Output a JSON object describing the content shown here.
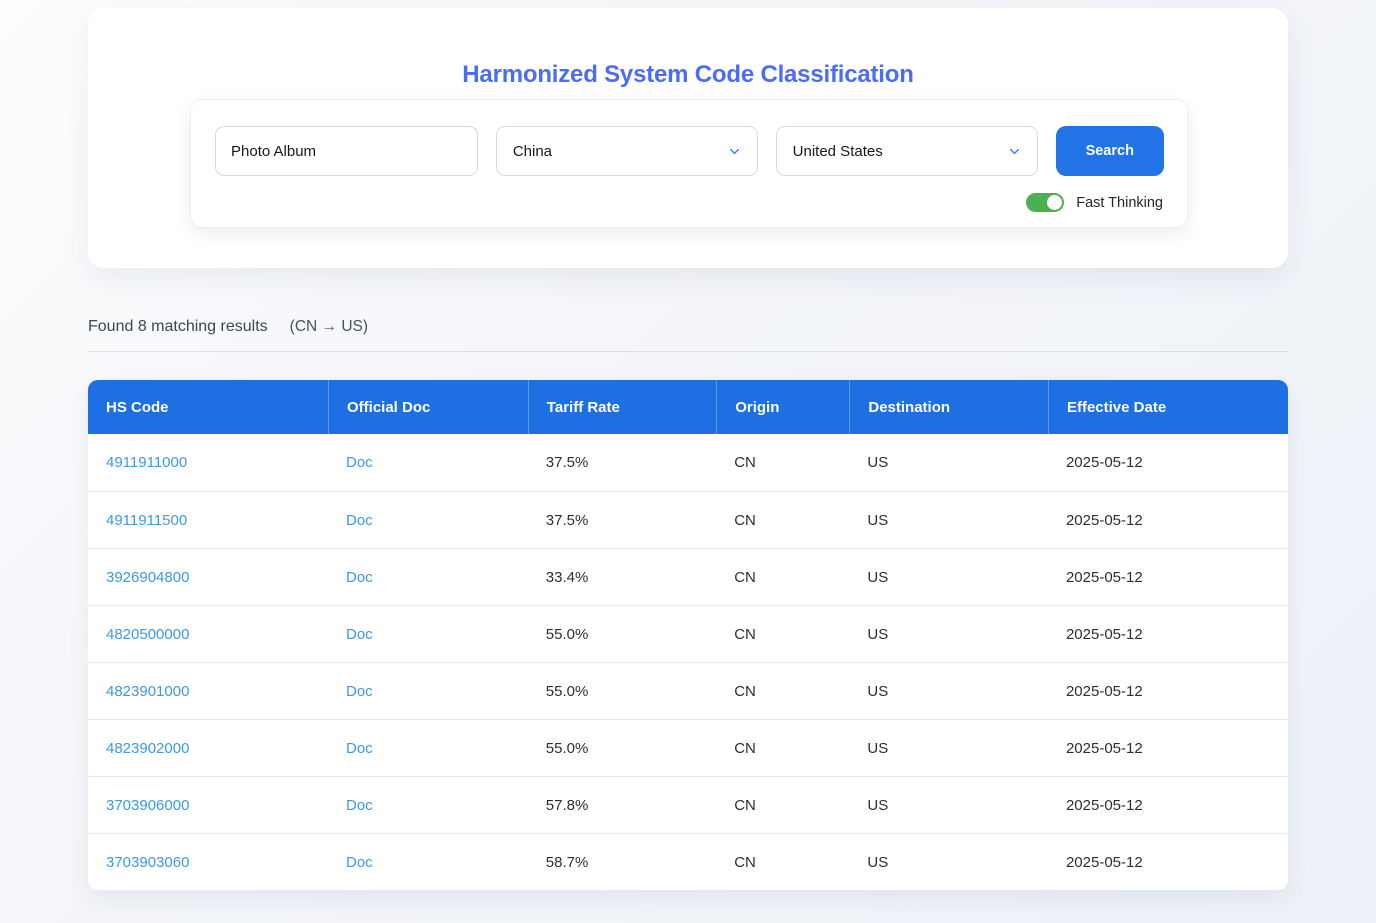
{
  "colors": {
    "title_blue": "#4b6cf6",
    "primary_blue": "#2173e6",
    "table_header_blue": "#1d6fe2",
    "link_blue": "#3b99e8",
    "toggle_green": "#4caf50",
    "chevron_blue": "#3b82f6"
  },
  "header_card": {
    "title": "Harmonized System Code Classification",
    "search_panel": {
      "product_input": {
        "value": "Photo Album"
      },
      "origin_select": {
        "value": "China"
      },
      "destination_select": {
        "value": "United States"
      },
      "search_button_label": "Search",
      "fast_thinking": {
        "label": "Fast Thinking",
        "state": "on"
      }
    }
  },
  "results": {
    "summary": "Found 8 matching results",
    "route": "(CN → US)"
  },
  "table": {
    "columns": [
      "HS Code",
      "Official Doc",
      "Tariff Rate",
      "Origin",
      "Destination",
      "Effective Date"
    ],
    "rows": [
      {
        "hs_code": "4911911000",
        "doc": "Doc",
        "tariff_rate": "37.5%",
        "origin": "CN",
        "destination": "US",
        "effective_date": "2025-05-12"
      },
      {
        "hs_code": "4911911500",
        "doc": "Doc",
        "tariff_rate": "37.5%",
        "origin": "CN",
        "destination": "US",
        "effective_date": "2025-05-12"
      },
      {
        "hs_code": "3926904800",
        "doc": "Doc",
        "tariff_rate": "33.4%",
        "origin": "CN",
        "destination": "US",
        "effective_date": "2025-05-12"
      },
      {
        "hs_code": "4820500000",
        "doc": "Doc",
        "tariff_rate": "55.0%",
        "origin": "CN",
        "destination": "US",
        "effective_date": "2025-05-12"
      },
      {
        "hs_code": "4823901000",
        "doc": "Doc",
        "tariff_rate": "55.0%",
        "origin": "CN",
        "destination": "US",
        "effective_date": "2025-05-12"
      },
      {
        "hs_code": "4823902000",
        "doc": "Doc",
        "tariff_rate": "55.0%",
        "origin": "CN",
        "destination": "US",
        "effective_date": "2025-05-12"
      },
      {
        "hs_code": "3703906000",
        "doc": "Doc",
        "tariff_rate": "57.8%",
        "origin": "CN",
        "destination": "US",
        "effective_date": "2025-05-12"
      },
      {
        "hs_code": "3703903060",
        "doc": "Doc",
        "tariff_rate": "58.7%",
        "origin": "CN",
        "destination": "US",
        "effective_date": "2025-05-12"
      }
    ]
  }
}
